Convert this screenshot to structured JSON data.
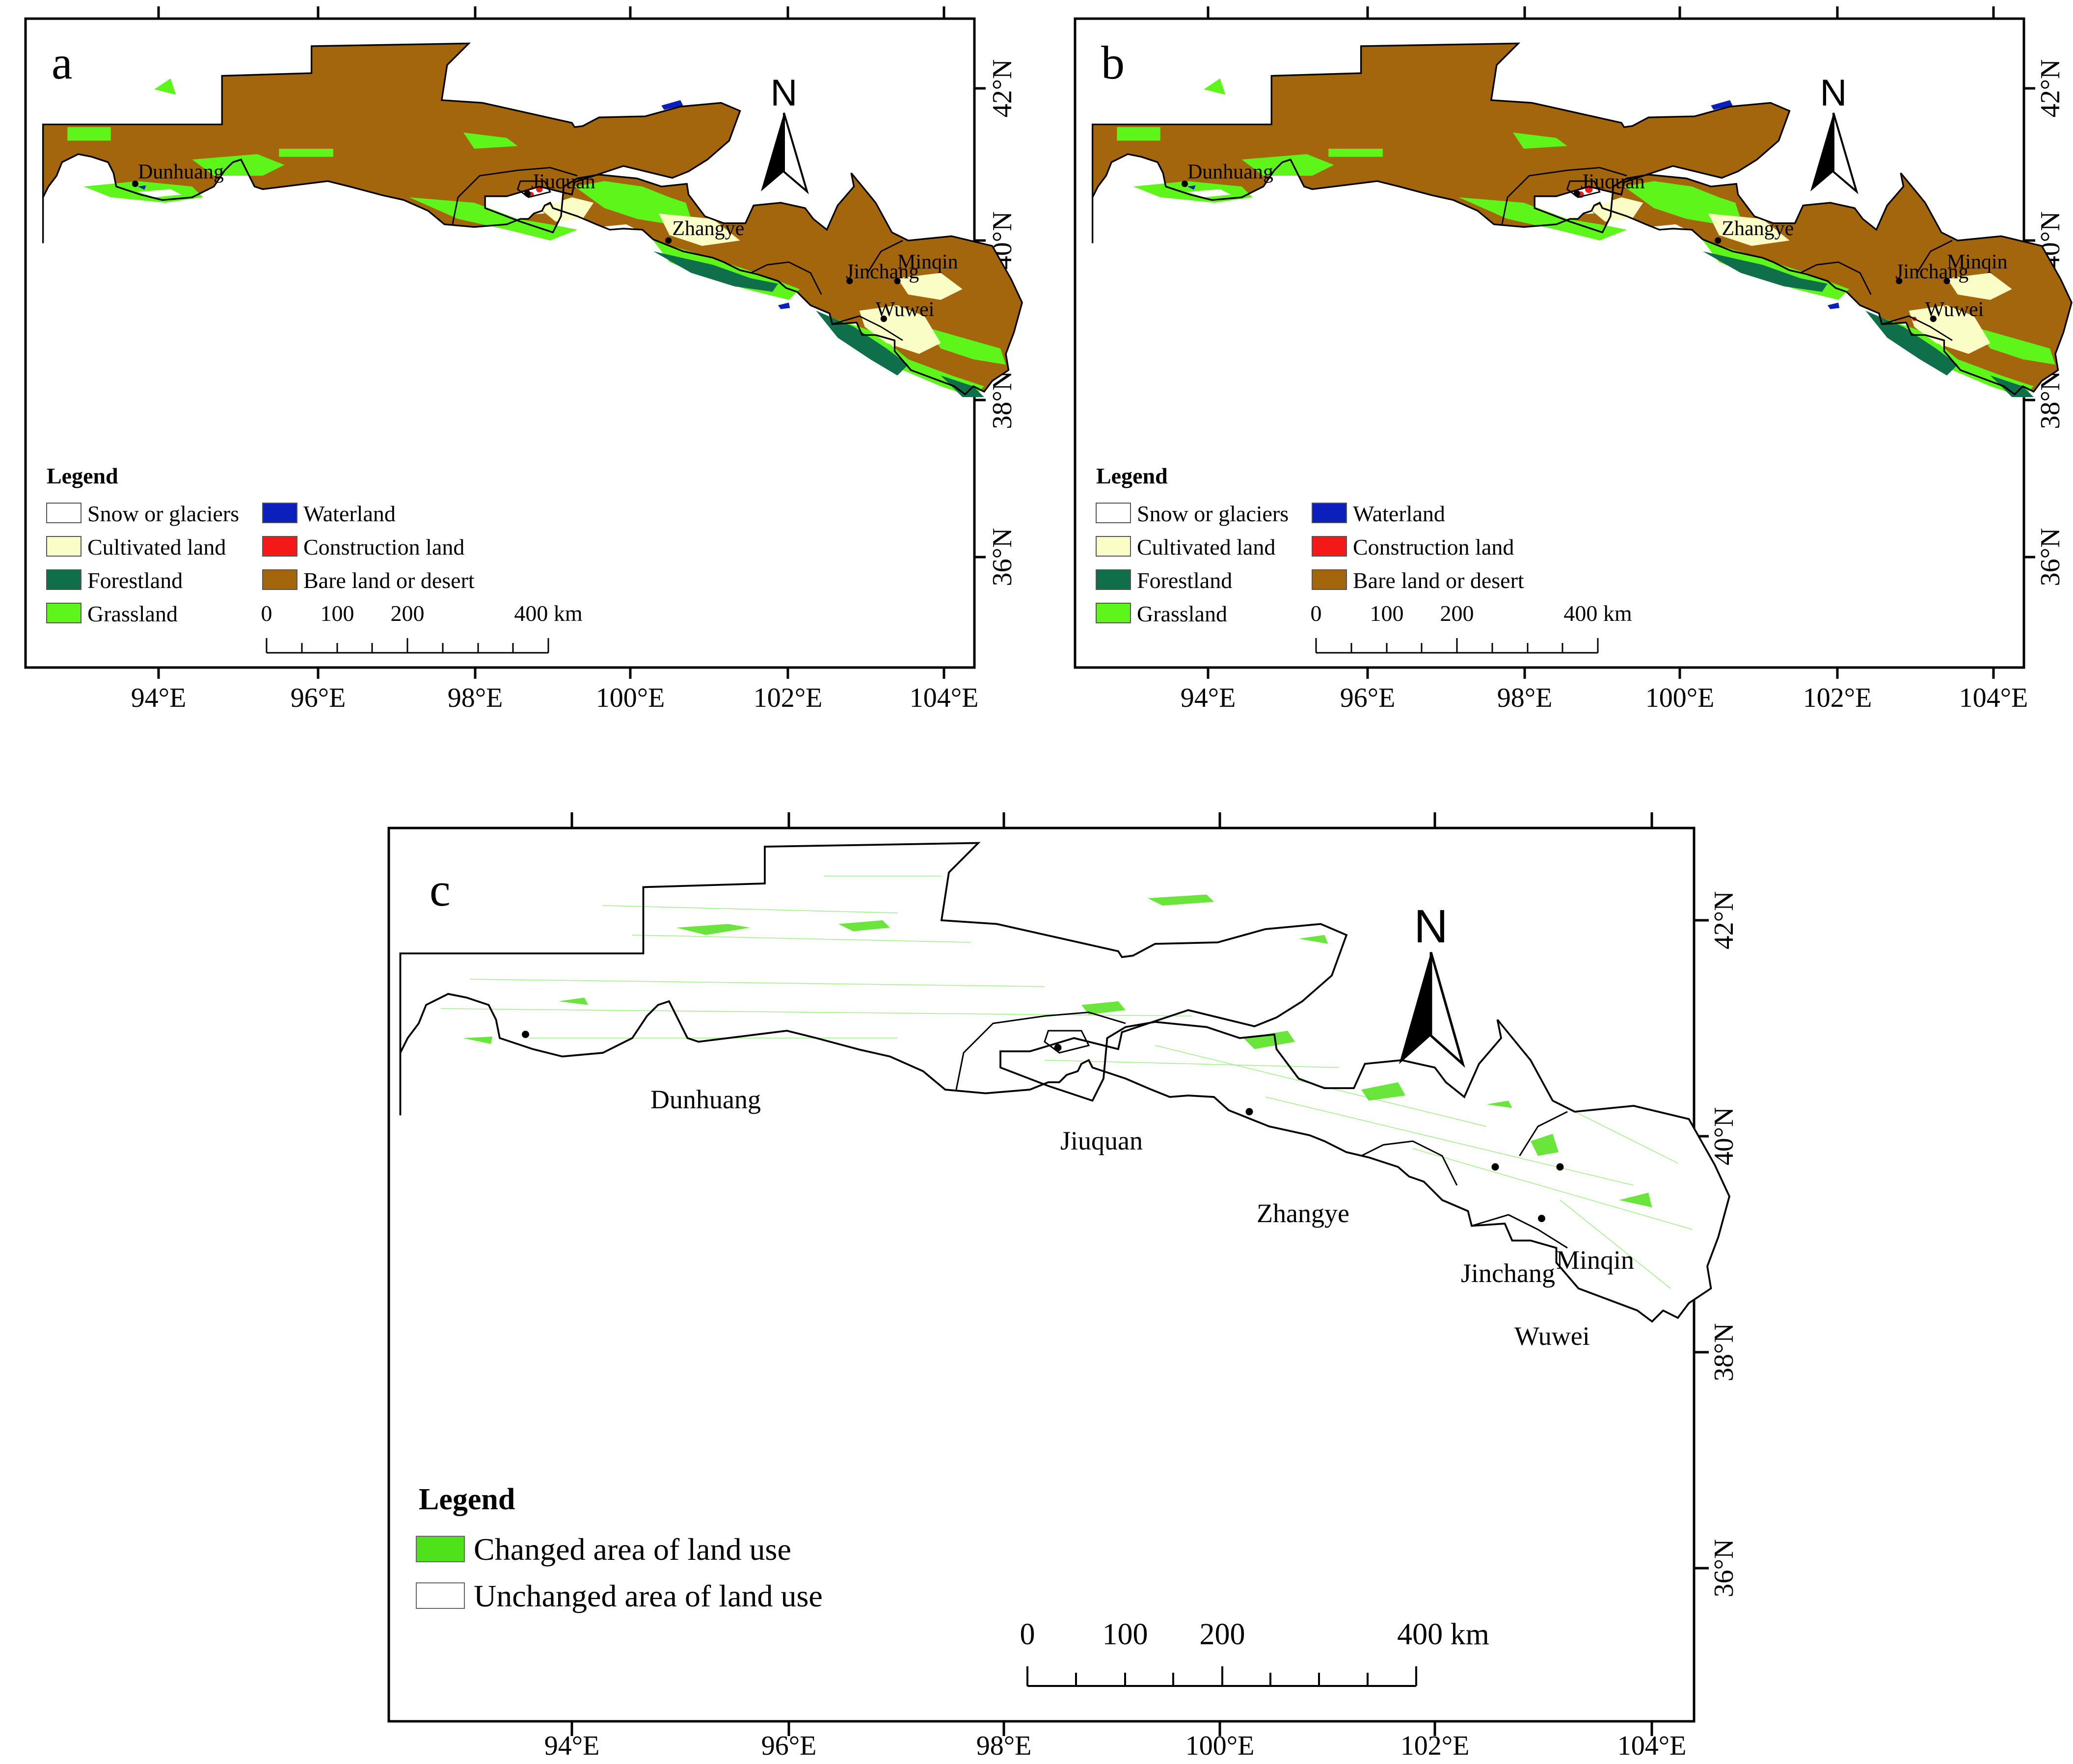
{
  "colors": {
    "snow": "#ffffff",
    "cultivated": "#fbfdc6",
    "forest": "#0e6f4a",
    "grass": "#5ef51a",
    "water": "#0b1fbd",
    "construction": "#f41818",
    "bare": "#a3660c",
    "changed": "#4fe11a",
    "unchanged": "#ffffff",
    "outline": "#000000"
  },
  "axes": {
    "lon_labels": [
      "94°E",
      "96°E",
      "98°E",
      "100°E",
      "102°E",
      "104°E"
    ],
    "lat_labels": [
      "42°N",
      "40°N",
      "38°N",
      "36°N"
    ]
  },
  "cities": [
    "Dunhuang",
    "Jiuquan",
    "Zhangye",
    "Jinchang",
    "Minqin",
    "Wuwei"
  ],
  "north_letter": "N",
  "panels": {
    "a": {
      "letter": "a",
      "legend": {
        "title": "Legend",
        "items": [
          {
            "label": "Snow or glaciers",
            "color": "#ffffff"
          },
          {
            "label": "Cultivated land",
            "color": "#fbfdc6"
          },
          {
            "label": "Forestland",
            "color": "#0e6f4a"
          },
          {
            "label": "Grassland",
            "color": "#5ef51a"
          },
          {
            "label": "Waterland",
            "color": "#0b1fbd"
          },
          {
            "label": "Construction land",
            "color": "#f41818"
          },
          {
            "label": "Bare land or desert",
            "color": "#a3660c"
          }
        ]
      },
      "scale": {
        "labels": [
          "0",
          "100",
          "200",
          "400 km"
        ]
      }
    },
    "b": {
      "letter": "b",
      "legend": {
        "title": "Legend",
        "items": [
          {
            "label": "Snow or glaciers",
            "color": "#ffffff"
          },
          {
            "label": "Cultivated land",
            "color": "#fbfdc6"
          },
          {
            "label": "Forestland",
            "color": "#0e6f4a"
          },
          {
            "label": "Grassland",
            "color": "#5ef51a"
          },
          {
            "label": "Waterland",
            "color": "#0b1fbd"
          },
          {
            "label": "Construction land",
            "color": "#f41818"
          },
          {
            "label": "Bare land or desert",
            "color": "#a3660c"
          }
        ]
      },
      "scale": {
        "labels": [
          "0",
          "100",
          "200",
          "400 km"
        ]
      }
    },
    "c": {
      "letter": "c",
      "legend": {
        "title": "Legend",
        "items": [
          {
            "label": "Changed area of land use",
            "color": "#4fe11a"
          },
          {
            "label": "Unchanged area of land use",
            "color": "#ffffff"
          }
        ]
      },
      "scale": {
        "labels": [
          "0",
          "100",
          "200",
          "400 km"
        ]
      }
    }
  }
}
